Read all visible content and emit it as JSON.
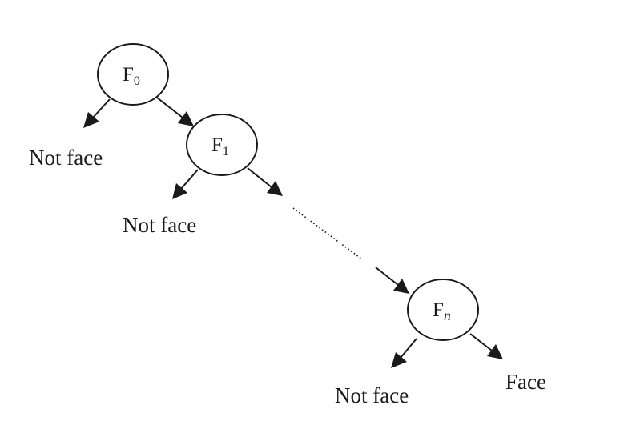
{
  "nodes": {
    "f0": {
      "letter": "F",
      "subscript": "0"
    },
    "f1": {
      "letter": "F",
      "subscript": "1"
    },
    "fn": {
      "letter": "F",
      "subscript": "n"
    }
  },
  "outcomes": {
    "f0_reject": "Not face",
    "f1_reject": "Not face",
    "fn_reject": "Not face",
    "fn_accept": "Face"
  }
}
